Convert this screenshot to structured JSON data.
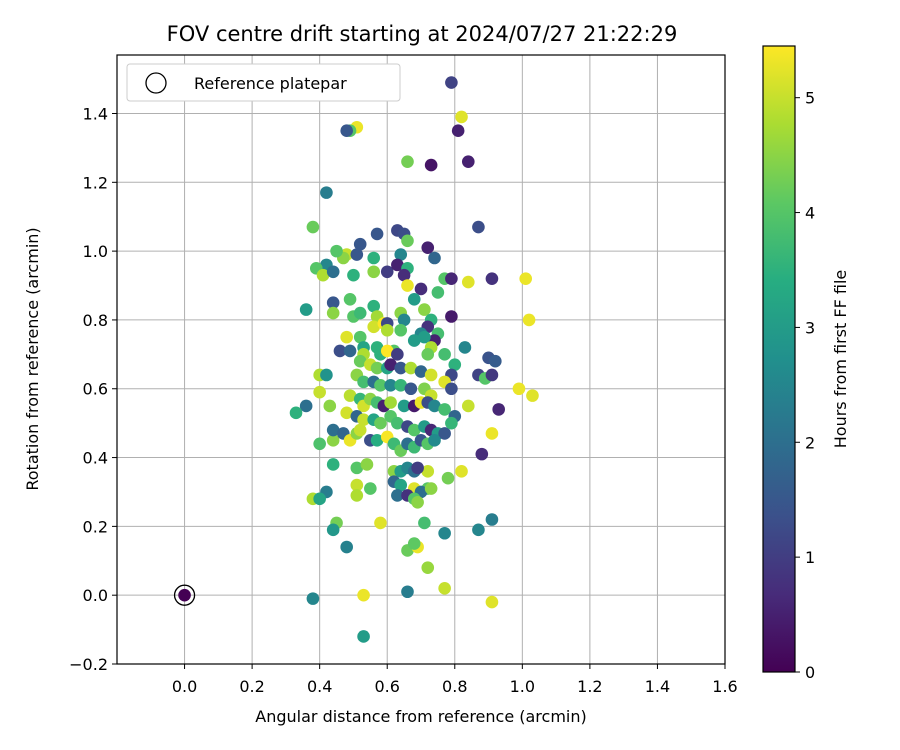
{
  "chart_data": {
    "type": "scatter",
    "title": "FOV centre drift starting at 2024/07/27 21:22:29",
    "xlabel": "Angular distance from reference (arcmin)",
    "ylabel": "Rotation from reference (arcmin)",
    "colorbar_label": "Hours from first FF file",
    "xlim": [
      -0.2,
      1.6
    ],
    "ylim": [
      -0.2,
      1.57
    ],
    "xticks": [
      "0.0",
      "0.2",
      "0.4",
      "0.6",
      "0.8",
      "1.0",
      "1.2",
      "1.4",
      "1.6"
    ],
    "yticks": [
      "−0.2",
      "0.0",
      "0.2",
      "0.4",
      "0.6",
      "0.8",
      "1.0",
      "1.2",
      "1.4"
    ],
    "colorbar_range": [
      0,
      5.45
    ],
    "colorbar_ticks": [
      "0",
      "1",
      "2",
      "3",
      "4",
      "5"
    ],
    "colormap": "viridis",
    "grid": true,
    "legend": {
      "placement": "top-left",
      "entries": [
        "Reference platepar"
      ]
    },
    "reference_point": {
      "x": 0.0,
      "y": 0.0,
      "hours": 0.0
    },
    "points": [
      [
        0.79,
        1.49,
        1.1
      ],
      [
        0.82,
        1.39,
        5.2
      ],
      [
        0.81,
        1.35,
        0.5
      ],
      [
        0.51,
        1.36,
        5.3
      ],
      [
        0.49,
        1.35,
        4.0
      ],
      [
        0.48,
        1.35,
        1.5
      ],
      [
        0.84,
        1.26,
        0.5
      ],
      [
        0.73,
        1.25,
        0.3
      ],
      [
        0.66,
        1.26,
        4.3
      ],
      [
        0.42,
        1.17,
        2.3
      ],
      [
        0.87,
        1.07,
        1.3
      ],
      [
        0.38,
        1.07,
        4.2
      ],
      [
        0.63,
        1.06,
        1.2
      ],
      [
        0.65,
        1.05,
        1.3
      ],
      [
        0.57,
        1.05,
        1.5
      ],
      [
        0.52,
        1.02,
        1.5
      ],
      [
        0.72,
        1.01,
        0.5
      ],
      [
        0.66,
        1.03,
        4.2
      ],
      [
        0.48,
        0.99,
        5.0
      ],
      [
        0.47,
        0.98,
        4.5
      ],
      [
        0.45,
        1.0,
        4.0
      ],
      [
        0.51,
        0.99,
        1.5
      ],
      [
        0.64,
        0.99,
        2.5
      ],
      [
        0.74,
        0.98,
        1.8
      ],
      [
        0.56,
        0.98,
        3.5
      ],
      [
        0.6,
        0.94,
        1.0
      ],
      [
        0.63,
        0.96,
        0.5
      ],
      [
        0.42,
        0.96,
        2.5
      ],
      [
        0.39,
        0.95,
        4.0
      ],
      [
        0.41,
        0.93,
        4.8
      ],
      [
        0.44,
        0.94,
        2.0
      ],
      [
        0.5,
        0.93,
        3.5
      ],
      [
        0.56,
        0.94,
        4.5
      ],
      [
        0.66,
        0.95,
        3.5
      ],
      [
        0.65,
        0.93,
        0.7
      ],
      [
        0.77,
        0.92,
        4.0
      ],
      [
        0.79,
        0.92,
        0.6
      ],
      [
        0.91,
        0.92,
        0.8
      ],
      [
        1.01,
        0.92,
        5.3
      ],
      [
        0.84,
        0.91,
        5.2
      ],
      [
        0.66,
        0.9,
        5.3
      ],
      [
        0.7,
        0.89,
        0.7
      ],
      [
        0.75,
        0.88,
        3.8
      ],
      [
        0.68,
        0.86,
        3.0
      ],
      [
        0.49,
        0.86,
        4.0
      ],
      [
        0.44,
        0.85,
        1.5
      ],
      [
        0.56,
        0.84,
        3.5
      ],
      [
        0.71,
        0.83,
        4.5
      ],
      [
        0.36,
        0.83,
        3.0
      ],
      [
        0.44,
        0.82,
        4.5
      ],
      [
        0.5,
        0.81,
        4.0
      ],
      [
        0.52,
        0.82,
        3.7
      ],
      [
        0.57,
        0.81,
        4.7
      ],
      [
        0.64,
        0.82,
        4.5
      ],
      [
        0.65,
        0.8,
        2.5
      ],
      [
        0.73,
        0.8,
        3.5
      ],
      [
        0.79,
        0.81,
        0.4
      ],
      [
        1.02,
        0.8,
        5.3
      ],
      [
        0.56,
        0.78,
        5.1
      ],
      [
        0.59,
        0.79,
        5.5
      ],
      [
        0.6,
        0.79,
        1.2
      ],
      [
        0.6,
        0.77,
        4.8
      ],
      [
        0.64,
        0.77,
        4.0
      ],
      [
        0.72,
        0.78,
        0.8
      ],
      [
        0.75,
        0.76,
        3.8
      ],
      [
        0.74,
        0.74,
        0.5
      ],
      [
        0.7,
        0.76,
        2.5
      ],
      [
        0.71,
        0.75,
        3.0
      ],
      [
        0.48,
        0.75,
        5.2
      ],
      [
        0.52,
        0.75,
        4.0
      ],
      [
        0.53,
        0.72,
        3.2
      ],
      [
        0.57,
        0.72,
        3.5
      ],
      [
        0.62,
        0.71,
        4.0
      ],
      [
        0.68,
        0.74,
        3.0
      ],
      [
        0.73,
        0.72,
        4.8
      ],
      [
        0.72,
        0.7,
        4.2
      ],
      [
        0.46,
        0.71,
        1.3
      ],
      [
        0.49,
        0.71,
        1.8
      ],
      [
        0.53,
        0.7,
        4.8
      ],
      [
        0.58,
        0.7,
        3.5
      ],
      [
        0.6,
        0.71,
        5.5
      ],
      [
        0.63,
        0.7,
        1.0
      ],
      [
        0.77,
        0.7,
        3.8
      ],
      [
        0.83,
        0.72,
        2.5
      ],
      [
        0.9,
        0.69,
        1.4
      ],
      [
        0.92,
        0.68,
        1.6
      ],
      [
        0.8,
        0.67,
        3.5
      ],
      [
        0.52,
        0.68,
        4.2
      ],
      [
        0.55,
        0.67,
        5.0
      ],
      [
        0.57,
        0.66,
        4.3
      ],
      [
        0.6,
        0.66,
        3.2
      ],
      [
        0.61,
        0.67,
        0.5
      ],
      [
        0.64,
        0.66,
        1.5
      ],
      [
        0.67,
        0.66,
        4.8
      ],
      [
        0.7,
        0.65,
        1.8
      ],
      [
        0.73,
        0.64,
        5.1
      ],
      [
        0.79,
        0.64,
        1.2
      ],
      [
        0.87,
        0.64,
        1.1
      ],
      [
        0.89,
        0.63,
        4.0
      ],
      [
        0.91,
        0.64,
        0.9
      ],
      [
        0.4,
        0.64,
        4.8
      ],
      [
        0.42,
        0.64,
        2.8
      ],
      [
        0.51,
        0.64,
        4.5
      ],
      [
        0.53,
        0.62,
        3.8
      ],
      [
        0.56,
        0.62,
        2.0
      ],
      [
        0.58,
        0.61,
        4.0
      ],
      [
        0.61,
        0.61,
        2.5
      ],
      [
        0.64,
        0.61,
        3.6
      ],
      [
        0.67,
        0.6,
        1.5
      ],
      [
        0.71,
        0.6,
        4.4
      ],
      [
        0.73,
        0.58,
        5.0
      ],
      [
        0.77,
        0.62,
        5.2
      ],
      [
        0.79,
        0.6,
        1.3
      ],
      [
        0.99,
        0.6,
        5.3
      ],
      [
        1.03,
        0.58,
        5.2
      ],
      [
        0.4,
        0.59,
        5.0
      ],
      [
        0.43,
        0.55,
        4.5
      ],
      [
        0.49,
        0.58,
        4.9
      ],
      [
        0.52,
        0.57,
        3.6
      ],
      [
        0.53,
        0.55,
        5.1
      ],
      [
        0.55,
        0.57,
        4.5
      ],
      [
        0.57,
        0.56,
        3.8
      ],
      [
        0.59,
        0.55,
        0.5
      ],
      [
        0.61,
        0.56,
        4.7
      ],
      [
        0.65,
        0.55,
        3.0
      ],
      [
        0.68,
        0.55,
        0.4
      ],
      [
        0.7,
        0.56,
        5.3
      ],
      [
        0.72,
        0.56,
        1.3
      ],
      [
        0.74,
        0.55,
        2.5
      ],
      [
        0.77,
        0.54,
        3.8
      ],
      [
        0.8,
        0.52,
        1.8
      ],
      [
        0.84,
        0.55,
        5.0
      ],
      [
        0.93,
        0.54,
        0.6
      ],
      [
        0.36,
        0.55,
        2.0
      ],
      [
        0.33,
        0.53,
        3.5
      ],
      [
        0.48,
        0.53,
        5.1
      ],
      [
        0.51,
        0.52,
        1.8
      ],
      [
        0.53,
        0.51,
        5.0
      ],
      [
        0.56,
        0.51,
        3.2
      ],
      [
        0.58,
        0.5,
        4.2
      ],
      [
        0.61,
        0.52,
        4.0
      ],
      [
        0.63,
        0.5,
        3.8
      ],
      [
        0.66,
        0.49,
        1.2
      ],
      [
        0.68,
        0.48,
        4.0
      ],
      [
        0.71,
        0.49,
        3.0
      ],
      [
        0.73,
        0.48,
        0.6
      ],
      [
        0.75,
        0.47,
        3.0
      ],
      [
        0.77,
        0.47,
        1.5
      ],
      [
        0.79,
        0.5,
        3.6
      ],
      [
        0.91,
        0.47,
        5.3
      ],
      [
        0.4,
        0.44,
        3.9
      ],
      [
        0.44,
        0.45,
        4.5
      ],
      [
        0.44,
        0.48,
        2.0
      ],
      [
        0.47,
        0.47,
        1.8
      ],
      [
        0.49,
        0.45,
        5.3
      ],
      [
        0.51,
        0.47,
        4.5
      ],
      [
        0.52,
        0.48,
        5.0
      ],
      [
        0.55,
        0.45,
        1.3
      ],
      [
        0.57,
        0.45,
        3.4
      ],
      [
        0.6,
        0.46,
        5.4
      ],
      [
        0.62,
        0.44,
        3.7
      ],
      [
        0.64,
        0.42,
        4.2
      ],
      [
        0.66,
        0.44,
        2.0
      ],
      [
        0.68,
        0.43,
        3.7
      ],
      [
        0.7,
        0.45,
        1.5
      ],
      [
        0.72,
        0.44,
        4.0
      ],
      [
        0.74,
        0.45,
        2.6
      ],
      [
        0.88,
        0.41,
        0.7
      ],
      [
        0.44,
        0.38,
        3.5
      ],
      [
        0.51,
        0.37,
        4.0
      ],
      [
        0.54,
        0.38,
        4.5
      ],
      [
        0.62,
        0.36,
        4.5
      ],
      [
        0.64,
        0.36,
        3.0
      ],
      [
        0.66,
        0.37,
        2.5
      ],
      [
        0.68,
        0.36,
        2.0
      ],
      [
        0.72,
        0.36,
        5.0
      ],
      [
        0.69,
        0.37,
        1.0
      ],
      [
        0.82,
        0.36,
        5.2
      ],
      [
        0.78,
        0.34,
        4.3
      ],
      [
        0.51,
        0.32,
        5.0
      ],
      [
        0.55,
        0.31,
        4.0
      ],
      [
        0.62,
        0.33,
        1.8
      ],
      [
        0.64,
        0.32,
        3.2
      ],
      [
        0.68,
        0.31,
        5.2
      ],
      [
        0.72,
        0.31,
        4.0
      ],
      [
        0.7,
        0.3,
        2.0
      ],
      [
        0.73,
        0.31,
        4.5
      ],
      [
        0.38,
        0.28,
        4.8
      ],
      [
        0.42,
        0.3,
        2.3
      ],
      [
        0.51,
        0.29,
        4.8
      ],
      [
        0.4,
        0.28,
        3.2
      ],
      [
        0.63,
        0.29,
        2.0
      ],
      [
        0.66,
        0.29,
        0.8
      ],
      [
        0.68,
        0.28,
        4.0
      ],
      [
        0.69,
        0.27,
        4.5
      ],
      [
        0.45,
        0.21,
        4.3
      ],
      [
        0.58,
        0.21,
        5.2
      ],
      [
        0.71,
        0.21,
        3.8
      ],
      [
        0.91,
        0.22,
        2.3
      ],
      [
        0.44,
        0.19,
        2.9
      ],
      [
        0.77,
        0.18,
        2.5
      ],
      [
        0.87,
        0.19,
        2.5
      ],
      [
        0.48,
        0.14,
        2.4
      ],
      [
        0.66,
        0.13,
        4.2
      ],
      [
        0.69,
        0.14,
        5.3
      ],
      [
        0.68,
        0.15,
        4.1
      ],
      [
        0.72,
        0.08,
        4.6
      ],
      [
        0.66,
        0.01,
        2.3
      ],
      [
        0.77,
        0.02,
        5.0
      ],
      [
        0.53,
        0.0,
        5.3
      ],
      [
        0.38,
        -0.01,
        2.5
      ],
      [
        0.91,
        -0.02,
        5.2
      ],
      [
        0.53,
        -0.12,
        3.0
      ]
    ]
  }
}
